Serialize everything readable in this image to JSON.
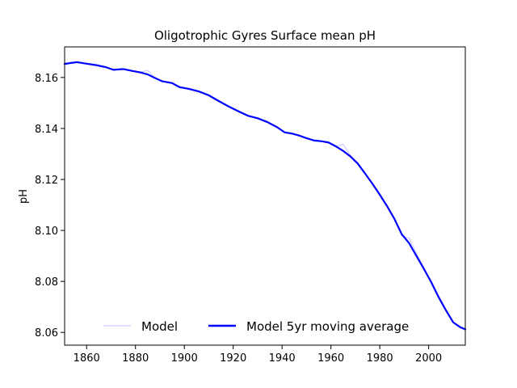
{
  "chart_data": {
    "type": "line",
    "title": "Oligotrophic Gyres Surface mean pH",
    "xlabel": "",
    "ylabel": "pH",
    "xlim": [
      1851,
      2015
    ],
    "ylim": [
      8.055,
      8.172
    ],
    "xticks": [
      1860,
      1880,
      1900,
      1920,
      1940,
      1960,
      1980,
      2000
    ],
    "yticks": [
      8.06,
      8.08,
      8.1,
      8.12,
      8.14,
      8.16
    ],
    "ytick_labels": [
      "8.06",
      "8.08",
      "8.10",
      "8.12",
      "8.14",
      "8.16"
    ],
    "grid": false,
    "legend_position": "lower-center",
    "series": [
      {
        "name": "Model",
        "color": "#ccccff",
        "x": [
          1851,
          1853,
          1856,
          1860,
          1864,
          1868,
          1871,
          1875,
          1879,
          1882,
          1885,
          1888,
          1891,
          1895,
          1898,
          1902,
          1906,
          1910,
          1914,
          1918,
          1922,
          1926,
          1930,
          1934,
          1938,
          1941,
          1944,
          1947,
          1950,
          1953,
          1956,
          1959,
          1962,
          1965,
          1968,
          1971,
          1974,
          1977,
          1980,
          1983,
          1986,
          1989,
          1992,
          1995,
          1998,
          2001,
          2004,
          2007,
          2010,
          2013,
          2015
        ],
        "y": [
          8.1655,
          8.166,
          8.1663,
          8.1656,
          8.1652,
          8.1642,
          8.1631,
          8.1635,
          8.1625,
          8.1621,
          8.1628,
          8.1598,
          8.1586,
          8.158,
          8.1565,
          8.1557,
          8.1546,
          8.1533,
          8.151,
          8.1488,
          8.147,
          8.1452,
          8.144,
          8.1428,
          8.1405,
          8.1385,
          8.1382,
          8.1375,
          8.1363,
          8.1355,
          8.135,
          8.1345,
          8.133,
          8.1338,
          8.1295,
          8.1265,
          8.1225,
          8.1185,
          8.114,
          8.1097,
          8.105,
          8.0978,
          8.097,
          8.091,
          8.0855,
          8.0795,
          8.0735,
          8.0685,
          8.064,
          8.0618,
          8.0612
        ]
      },
      {
        "name": "Model 5yr moving average",
        "color": "#0000ff",
        "x": [
          1851,
          1853,
          1856,
          1860,
          1864,
          1868,
          1871,
          1875,
          1879,
          1882,
          1885,
          1888,
          1891,
          1895,
          1898,
          1902,
          1906,
          1910,
          1914,
          1918,
          1922,
          1926,
          1930,
          1934,
          1938,
          1941,
          1944,
          1947,
          1950,
          1953,
          1956,
          1959,
          1962,
          1965,
          1968,
          1971,
          1974,
          1977,
          1980,
          1983,
          1986,
          1989,
          1992,
          1995,
          1998,
          2001,
          2004,
          2007,
          2010,
          2013,
          2015
        ],
        "y": [
          8.1653,
          8.1656,
          8.166,
          8.1654,
          8.1648,
          8.164,
          8.163,
          8.1633,
          8.1625,
          8.162,
          8.1612,
          8.1598,
          8.1585,
          8.1578,
          8.1562,
          8.1555,
          8.1545,
          8.153,
          8.1508,
          8.1487,
          8.1468,
          8.145,
          8.144,
          8.1425,
          8.1405,
          8.1385,
          8.138,
          8.1372,
          8.1362,
          8.1353,
          8.135,
          8.1345,
          8.133,
          8.1312,
          8.129,
          8.1262,
          8.1223,
          8.1183,
          8.114,
          8.1095,
          8.1045,
          8.0985,
          8.095,
          8.09,
          8.085,
          8.0798,
          8.074,
          8.0688,
          8.064,
          8.062,
          8.0612
        ]
      }
    ]
  }
}
